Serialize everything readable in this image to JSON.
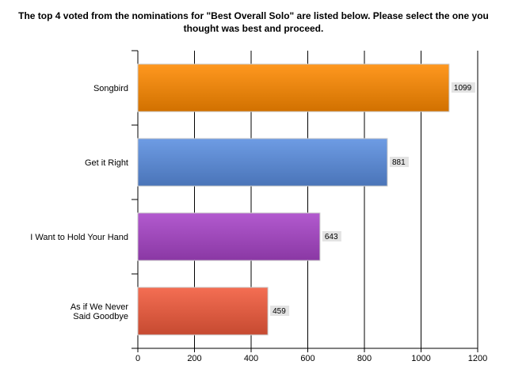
{
  "chart_data": {
    "type": "bar",
    "orientation": "horizontal",
    "title": "The top 4 voted from the nominations for \"Best Overall Solo\" are listed below. Please select the one you thought was best and proceed.",
    "categories": [
      "Songbird",
      "Get it Right",
      "I Want to Hold Your Hand",
      "As if We Never Said Goodbye"
    ],
    "values": [
      1099,
      881,
      643,
      459
    ],
    "value_labels": [
      "1099",
      "881",
      "643",
      "459"
    ],
    "xlim": [
      0,
      1200
    ],
    "x_ticks": [
      0,
      200,
      400,
      600,
      800,
      1000,
      1200
    ],
    "x_tick_labels": [
      "0",
      "200",
      "400",
      "600",
      "800",
      "1000",
      "1200"
    ],
    "xlabel": "",
    "ylabel": "",
    "grid": true,
    "legend": "none",
    "colors": [
      "#ff8a00",
      "#5a8ee0",
      "#a844c8",
      "#f25a3c"
    ],
    "category_label_lines": [
      [
        "Songbird"
      ],
      [
        "Get it Right"
      ],
      [
        "I Want to Hold Your Hand"
      ],
      [
        "As if We Never",
        "Said Goodbye"
      ]
    ]
  }
}
